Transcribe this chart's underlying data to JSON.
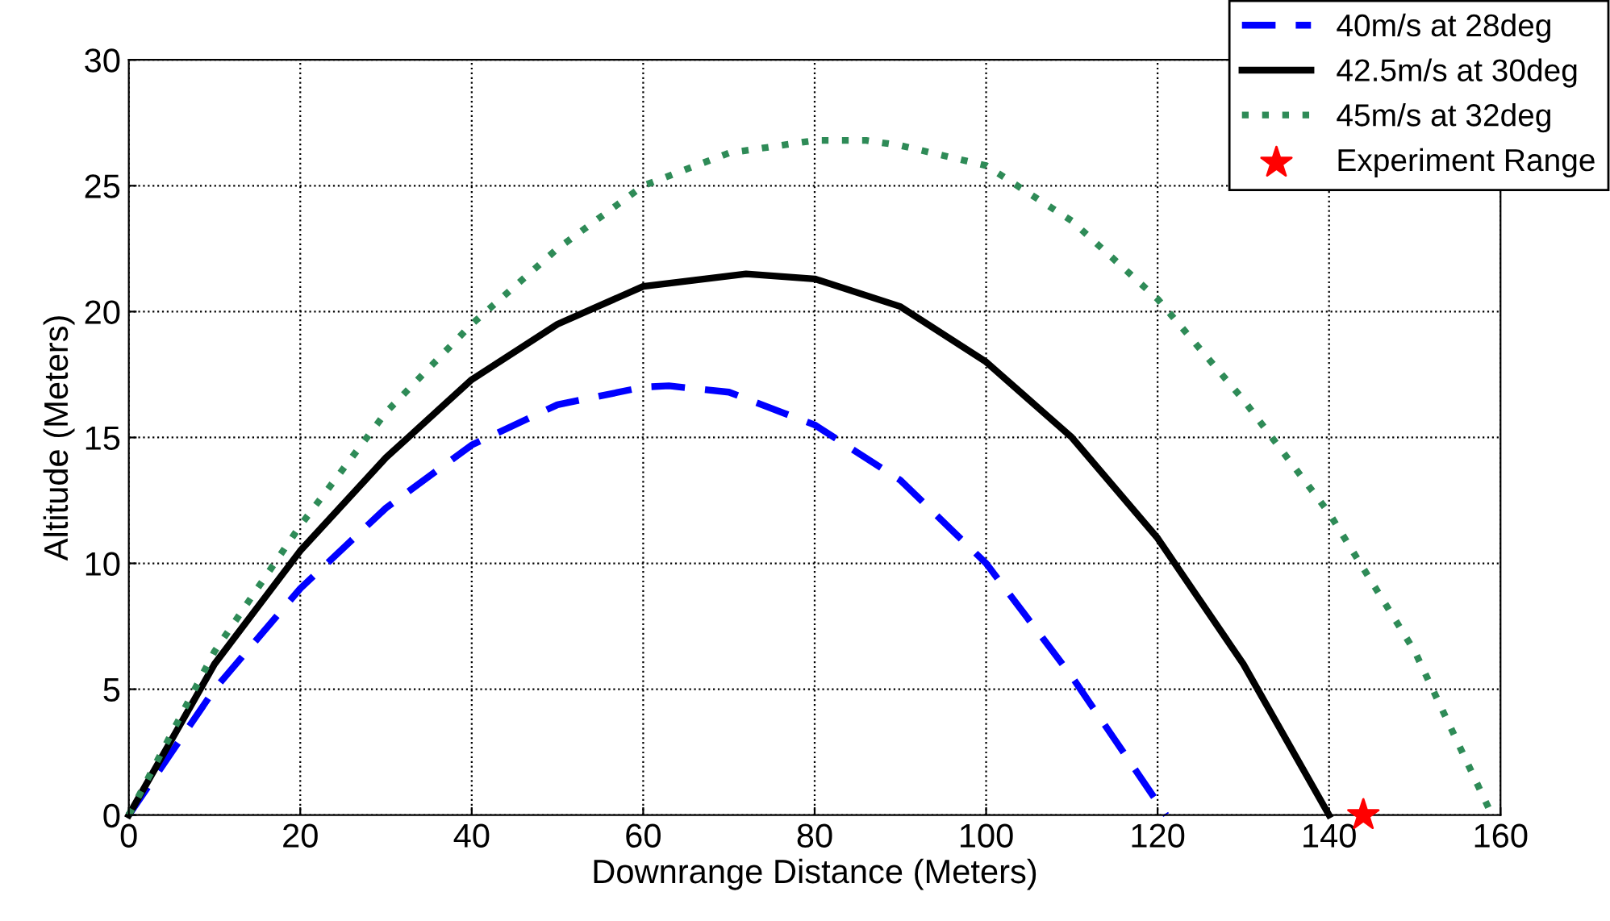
{
  "chart_data": {
    "type": "line",
    "xlabel": "Downrange Distance (Meters)",
    "ylabel": "Altitude (Meters)",
    "xlim": [
      0,
      160
    ],
    "ylim": [
      0,
      30
    ],
    "xticks": [
      0,
      20,
      40,
      60,
      80,
      100,
      120,
      140,
      160
    ],
    "yticks": [
      0,
      5,
      10,
      15,
      20,
      25,
      30
    ],
    "grid": true,
    "legend": "top right",
    "series": [
      {
        "name": "40m/s at 28deg",
        "color": "#0000ff",
        "line_style": "dashed",
        "marker": "none",
        "x": [
          0,
          10,
          20,
          30,
          40,
          50,
          60,
          63,
          70,
          80,
          90,
          100,
          110,
          115,
          121
        ],
        "values": [
          0,
          5,
          9,
          12.2,
          14.7,
          16.3,
          17,
          17.05,
          16.8,
          15.5,
          13.3,
          10,
          5.5,
          3,
          0
        ]
      },
      {
        "name": "42.5m/s at 30deg",
        "color": "#000000",
        "line_style": "solid",
        "marker": "none",
        "x": [
          0,
          10,
          20,
          30,
          40,
          50,
          60,
          72,
          80,
          90,
          100,
          110,
          120,
          130,
          140
        ],
        "values": [
          0,
          6,
          10.5,
          14.2,
          17.3,
          19.5,
          21,
          21.5,
          21.3,
          20.2,
          18,
          15,
          11,
          6,
          0
        ]
      },
      {
        "name": "45m/s at 32deg",
        "color": "#2e8b57",
        "line_style": "dotted",
        "marker": "none",
        "x": [
          0,
          10,
          20,
          30,
          40,
          50,
          60,
          70,
          80,
          86,
          90,
          100,
          110,
          120,
          130,
          140,
          150,
          159
        ],
        "values": [
          0,
          6.5,
          11.5,
          16,
          19.5,
          22.5,
          25,
          26.3,
          26.8,
          26.8,
          26.6,
          25.8,
          23.6,
          20.5,
          16.5,
          12,
          6.5,
          0
        ]
      },
      {
        "name": "Experiment Range",
        "type": "scatter",
        "color": "#ff0000",
        "marker": "star",
        "x": [
          144
        ],
        "values": [
          0
        ]
      }
    ]
  }
}
